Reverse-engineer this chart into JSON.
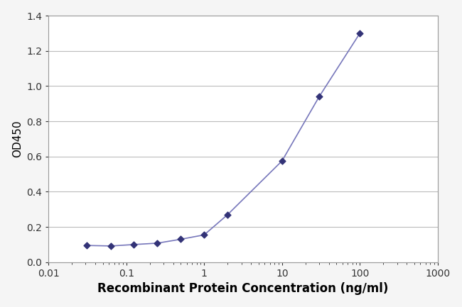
{
  "x": [
    0.031,
    0.063,
    0.125,
    0.25,
    0.5,
    1.0,
    2.0,
    10.0,
    30.0,
    100.0
  ],
  "y": [
    0.095,
    0.092,
    0.1,
    0.108,
    0.13,
    0.155,
    0.27,
    0.575,
    0.94,
    1.3
  ],
  "line_color": "#7777bb",
  "marker_color": "#333377",
  "marker_style": "D",
  "marker_size": 4.5,
  "line_width": 1.2,
  "title": "",
  "xlabel": "Recombinant Protein Concentration (ng/ml)",
  "ylabel": "OD450",
  "xlim": [
    0.01,
    1000
  ],
  "ylim": [
    0.0,
    1.4
  ],
  "yticks": [
    0.0,
    0.2,
    0.4,
    0.6,
    0.8,
    1.0,
    1.2,
    1.4
  ],
  "xtick_positions": [
    0.01,
    0.1,
    1,
    10,
    100,
    1000
  ],
  "xtick_labels": [
    "0.01",
    "0.1",
    "1",
    "10",
    "100",
    "1000"
  ],
  "background_color": "#f5f5f5",
  "plot_bg_color": "#ffffff",
  "grid_color": "#bbbbbb",
  "xlabel_fontsize": 12,
  "ylabel_fontsize": 11,
  "tick_fontsize": 10,
  "xlabel_color": "#000000",
  "ylabel_color": "#000000",
  "spine_color": "#999999"
}
